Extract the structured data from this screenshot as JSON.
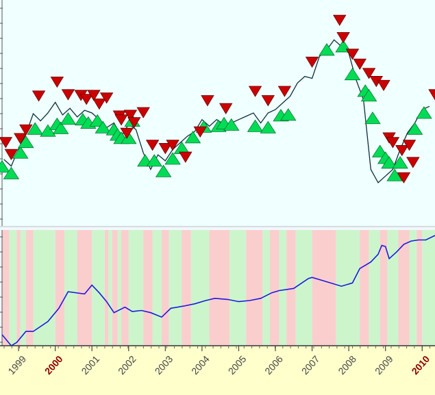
{
  "chart_data": [
    {
      "type": "line",
      "panel": "price",
      "description_of_marks": "price line with buy (green up triangle) and sell (red down triangle) signals",
      "x": [
        1998.6,
        1998.8,
        1999.0,
        1999.2,
        1999.4,
        1999.6,
        1999.8,
        2000.0,
        2000.2,
        2000.4,
        2000.6,
        2000.8,
        2001.0,
        2001.2,
        2001.4,
        2001.6,
        2001.8,
        2002.0,
        2002.2,
        2002.4,
        2002.6,
        2002.8,
        2003.0,
        2003.2,
        2003.4,
        2003.6,
        2003.8,
        2004.0,
        2004.2,
        2004.4,
        2004.6,
        2004.8,
        2005.0,
        2005.2,
        2005.4,
        2005.6,
        2005.8,
        2006.0,
        2006.2,
        2006.4,
        2006.6,
        2006.8,
        2007.0,
        2007.2,
        2007.4,
        2007.6,
        2007.8,
        2008.0,
        2008.2,
        2008.4,
        2008.6,
        2008.8,
        2009.0,
        2009.2,
        2009.4,
        2009.6,
        2009.8,
        2010.0,
        2010.2
      ],
      "y": [
        10.0,
        9.0,
        11.6,
        13.8,
        16.9,
        15.8,
        17.0,
        18.6,
        16.7,
        17.7,
        16.4,
        17.4,
        17.0,
        16.0,
        14.8,
        15.5,
        13.5,
        15.3,
        14.5,
        11.0,
        8.5,
        10.7,
        9.8,
        11.5,
        12.5,
        13.5,
        14.2,
        16.0,
        15.0,
        16.0,
        15.3,
        15.5,
        16.0,
        16.5,
        17.0,
        15.5,
        17.0,
        17.5,
        18.5,
        19.5,
        21.5,
        22.5,
        22.2,
        25.5,
        26.5,
        28.0,
        27.0,
        26.0,
        22.0,
        19.0,
        8.5,
        6.5,
        7.5,
        8.5,
        11.5,
        14.0,
        15.5,
        17.5,
        18.0
      ],
      "buy_signals": [
        [
          1998.55,
          8.9
        ],
        [
          1998.8,
          7.9
        ],
        [
          1999.05,
          11.0
        ],
        [
          1999.2,
          12.6
        ],
        [
          1999.45,
          14.6
        ],
        [
          1999.8,
          14.3
        ],
        [
          2000.05,
          15.3
        ],
        [
          2000.15,
          14.7
        ],
        [
          2000.35,
          16.1
        ],
        [
          2000.75,
          16.0
        ],
        [
          2000.9,
          15.5
        ],
        [
          2001.15,
          15.8
        ],
        [
          2001.3,
          14.8
        ],
        [
          2001.6,
          14.5
        ],
        [
          2001.7,
          13.7
        ],
        [
          2001.8,
          13.2
        ],
        [
          2002.0,
          13.2
        ],
        [
          2002.1,
          15.8
        ],
        [
          2002.45,
          9.8
        ],
        [
          2002.7,
          9.8
        ],
        [
          2002.95,
          8.2
        ],
        [
          2003.2,
          10.1
        ],
        [
          2003.45,
          11.7
        ],
        [
          2003.75,
          13.3
        ],
        [
          2004.05,
          14.9
        ],
        [
          2004.45,
          15.0
        ],
        [
          2004.6,
          15.4
        ],
        [
          2004.8,
          15.2
        ],
        [
          2005.45,
          15.0
        ],
        [
          2005.8,
          14.8
        ],
        [
          2006.15,
          16.6
        ],
        [
          2006.35,
          16.7
        ],
        [
          2007.4,
          26.5
        ],
        [
          2007.85,
          27.0
        ],
        [
          2008.1,
          22.8
        ],
        [
          2008.45,
          20.3
        ],
        [
          2008.55,
          19.6
        ],
        [
          2008.65,
          16.2
        ],
        [
          2008.85,
          11.2
        ],
        [
          2009.0,
          10.2
        ],
        [
          2009.1,
          9.5
        ],
        [
          2009.25,
          7.6
        ],
        [
          2009.4,
          9.5
        ],
        [
          2009.8,
          14.6
        ],
        [
          2010.05,
          17.0
        ]
      ],
      "sell_signals": [
        [
          1998.65,
          12.6
        ],
        [
          1998.8,
          10.8
        ],
        [
          1999.05,
          13.2
        ],
        [
          1999.2,
          14.5
        ],
        [
          1999.55,
          19.6
        ],
        [
          2000.05,
          21.7
        ],
        [
          2000.35,
          19.8
        ],
        [
          2000.7,
          19.7
        ],
        [
          2000.85,
          19.1
        ],
        [
          2001.05,
          19.7
        ],
        [
          2001.2,
          18.4
        ],
        [
          2001.4,
          19.3
        ],
        [
          2001.75,
          16.6
        ],
        [
          2001.8,
          16.0
        ],
        [
          2001.95,
          14.0
        ],
        [
          2002.05,
          16.7
        ],
        [
          2002.15,
          15.6
        ],
        [
          2002.4,
          17.1
        ],
        [
          2002.65,
          12.2
        ],
        [
          2003.0,
          11.7
        ],
        [
          2003.2,
          12.2
        ],
        [
          2003.55,
          10.4
        ],
        [
          2003.95,
          14.2
        ],
        [
          2004.15,
          18.9
        ],
        [
          2004.65,
          17.7
        ],
        [
          2005.45,
          20.3
        ],
        [
          2005.8,
          18.9
        ],
        [
          2006.25,
          20.3
        ],
        [
          2007.0,
          24.7
        ],
        [
          2007.75,
          31.0
        ],
        [
          2007.85,
          28.4
        ],
        [
          2008.1,
          25.9
        ],
        [
          2008.3,
          24.4
        ],
        [
          2008.55,
          23.0
        ],
        [
          2008.75,
          21.8
        ],
        [
          2008.95,
          21.2
        ],
        [
          2009.1,
          13.3
        ],
        [
          2009.2,
          12.6
        ],
        [
          2009.45,
          11.4
        ],
        [
          2009.5,
          7.3
        ],
        [
          2009.65,
          12.2
        ],
        [
          2009.75,
          9.6
        ],
        [
          2010.35,
          19.8
        ]
      ],
      "ylim": [
        0,
        34
      ],
      "xlim": [
        1998.55,
        2010.35
      ],
      "colors": {
        "line": "#0c2e3a",
        "buy": "#00dd55",
        "sell": "#cc0000",
        "background": "#f0ffff"
      }
    },
    {
      "type": "line",
      "panel": "equity",
      "x": [
        1998.55,
        1998.8,
        1998.95,
        1999.2,
        1999.4,
        1999.8,
        2000.1,
        2000.35,
        2000.8,
        2001.0,
        2001.2,
        2001.4,
        2001.6,
        2001.9,
        2002.1,
        2002.35,
        2002.6,
        2002.9,
        2003.15,
        2003.5,
        2003.8,
        2004.1,
        2004.35,
        2004.7,
        2005.0,
        2005.3,
        2005.6,
        2005.9,
        2006.1,
        2006.5,
        2006.9,
        2007.0,
        2007.4,
        2007.8,
        2008.1,
        2008.3,
        2008.6,
        2008.8,
        2008.9,
        2009.0,
        2009.1,
        2009.3,
        2009.5,
        2009.7,
        2009.9,
        2010.1,
        2010.35
      ],
      "y": [
        1.0,
        0.0,
        0.3,
        1.3,
        1.3,
        2.2,
        3.4,
        4.9,
        4.7,
        5.5,
        4.8,
        4.0,
        3.0,
        3.5,
        3.1,
        3.2,
        3.0,
        2.6,
        3.4,
        3.6,
        3.8,
        4.1,
        4.3,
        4.2,
        4.0,
        4.1,
        4.3,
        4.8,
        5.0,
        5.2,
        6.1,
        6.2,
        5.8,
        5.4,
        5.7,
        7.0,
        7.6,
        8.3,
        9.1,
        9.0,
        7.9,
        8.5,
        9.2,
        9.5,
        9.6,
        9.6,
        10.0
      ],
      "regions": [
        {
          "start": 1998.55,
          "end": 1998.75,
          "state": "short"
        },
        {
          "start": 1998.75,
          "end": 1998.95,
          "state": "long"
        },
        {
          "start": 1998.95,
          "end": 1999.05,
          "state": "short"
        },
        {
          "start": 1999.05,
          "end": 1999.2,
          "state": "long"
        },
        {
          "start": 1999.2,
          "end": 1999.4,
          "state": "short"
        },
        {
          "start": 1999.4,
          "end": 2000.0,
          "state": "long"
        },
        {
          "start": 2000.0,
          "end": 2000.25,
          "state": "short"
        },
        {
          "start": 2000.25,
          "end": 2000.6,
          "state": "long"
        },
        {
          "start": 2000.6,
          "end": 2001.0,
          "state": "short"
        },
        {
          "start": 2001.0,
          "end": 2001.35,
          "state": "long"
        },
        {
          "start": 2001.35,
          "end": 2001.45,
          "state": "short"
        },
        {
          "start": 2001.45,
          "end": 2001.55,
          "state": "long"
        },
        {
          "start": 2001.55,
          "end": 2001.7,
          "state": "short"
        },
        {
          "start": 2001.7,
          "end": 2001.8,
          "state": "long"
        },
        {
          "start": 2001.8,
          "end": 2002.0,
          "state": "short"
        },
        {
          "start": 2002.0,
          "end": 2002.4,
          "state": "long"
        },
        {
          "start": 2002.4,
          "end": 2002.65,
          "state": "short"
        },
        {
          "start": 2002.65,
          "end": 2002.9,
          "state": "long"
        },
        {
          "start": 2002.9,
          "end": 2003.1,
          "state": "short"
        },
        {
          "start": 2003.1,
          "end": 2003.45,
          "state": "long"
        },
        {
          "start": 2003.45,
          "end": 2003.7,
          "state": "short"
        },
        {
          "start": 2003.7,
          "end": 2004.2,
          "state": "long"
        },
        {
          "start": 2004.2,
          "end": 2004.75,
          "state": "short"
        },
        {
          "start": 2004.75,
          "end": 2005.2,
          "state": "long"
        },
        {
          "start": 2005.2,
          "end": 2005.65,
          "state": "short"
        },
        {
          "start": 2005.65,
          "end": 2005.85,
          "state": "long"
        },
        {
          "start": 2005.85,
          "end": 2006.1,
          "state": "short"
        },
        {
          "start": 2006.1,
          "end": 2006.3,
          "state": "long"
        },
        {
          "start": 2006.3,
          "end": 2006.55,
          "state": "short"
        },
        {
          "start": 2006.55,
          "end": 2007.0,
          "state": "long"
        },
        {
          "start": 2007.0,
          "end": 2007.65,
          "state": "short"
        },
        {
          "start": 2007.65,
          "end": 2008.3,
          "state": "long"
        },
        {
          "start": 2008.3,
          "end": 2008.55,
          "state": "short"
        },
        {
          "start": 2008.55,
          "end": 2008.85,
          "state": "long"
        },
        {
          "start": 2008.85,
          "end": 2009.05,
          "state": "short"
        },
        {
          "start": 2009.05,
          "end": 2009.35,
          "state": "long"
        },
        {
          "start": 2009.35,
          "end": 2009.65,
          "state": "short"
        },
        {
          "start": 2009.65,
          "end": 2009.85,
          "state": "long"
        },
        {
          "start": 2009.85,
          "end": 2010.0,
          "state": "short"
        },
        {
          "start": 2010.0,
          "end": 2010.35,
          "state": "long"
        }
      ],
      "ylim": [
        0,
        10.5
      ],
      "xlim": [
        1998.55,
        2010.35
      ],
      "colors": {
        "line": "#1a1adc",
        "long": "#ccf5cc",
        "short": "#fbcece"
      }
    }
  ],
  "x_axis": {
    "tick_labels": [
      {
        "year": 1999,
        "label": "1999",
        "highlight": false
      },
      {
        "year": 2000,
        "label": "2000",
        "highlight": true
      },
      {
        "year": 2001,
        "label": "2001",
        "highlight": false
      },
      {
        "year": 2002,
        "label": "2002",
        "highlight": false
      },
      {
        "year": 2003,
        "label": "2003",
        "highlight": false
      },
      {
        "year": 2004,
        "label": "2004",
        "highlight": false
      },
      {
        "year": 2005,
        "label": "2005",
        "highlight": false
      },
      {
        "year": 2006,
        "label": "2006",
        "highlight": false
      },
      {
        "year": 2007,
        "label": "2007",
        "highlight": false
      },
      {
        "year": 2008,
        "label": "2008",
        "highlight": false
      },
      {
        "year": 2009,
        "label": "2009",
        "highlight": false
      },
      {
        "year": 2010,
        "label": "2010",
        "highlight": true
      }
    ],
    "colors": {
      "background": "#ffffcc",
      "label": "#444444",
      "highlight_label": "#8b0000"
    }
  }
}
